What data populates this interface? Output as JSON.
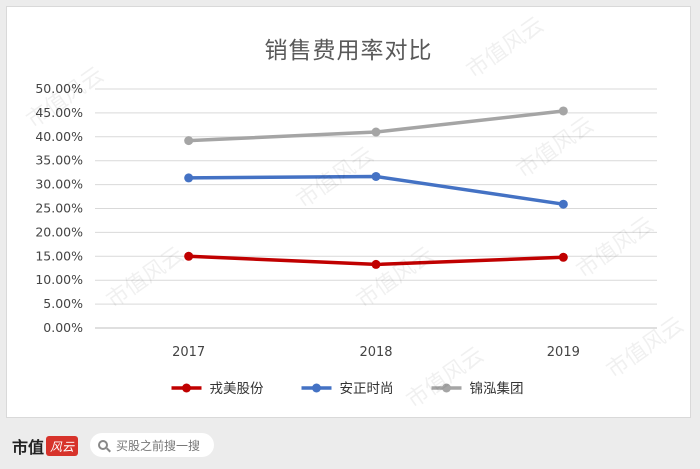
{
  "chart_data": {
    "type": "line",
    "title": "销售费用率对比",
    "categories": [
      "2017",
      "2018",
      "2019"
    ],
    "series": [
      {
        "name": "戎美股份",
        "values": [
          15.0,
          13.3,
          14.8
        ],
        "color": "#c00000"
      },
      {
        "name": "安正时尚",
        "values": [
          31.4,
          31.7,
          25.9
        ],
        "color": "#4472c4"
      },
      {
        "name": "锦泓集团",
        "values": [
          39.2,
          41.0,
          45.4
        ],
        "color": "#a5a5a5"
      }
    ],
    "ylim": [
      0,
      50
    ],
    "y_ticks": [
      "0.00%",
      "5.00%",
      "10.00%",
      "15.00%",
      "20.00%",
      "25.00%",
      "30.00%",
      "35.00%",
      "40.00%",
      "45.00%",
      "50.00%"
    ],
    "grid": true,
    "legend_position": "bottom"
  },
  "watermark_text": "市值风云",
  "footer": {
    "brand_text": "市值",
    "brand_mark": "风云",
    "search_placeholder": "买股之前搜一搜",
    "search_icon": "search-icon"
  }
}
